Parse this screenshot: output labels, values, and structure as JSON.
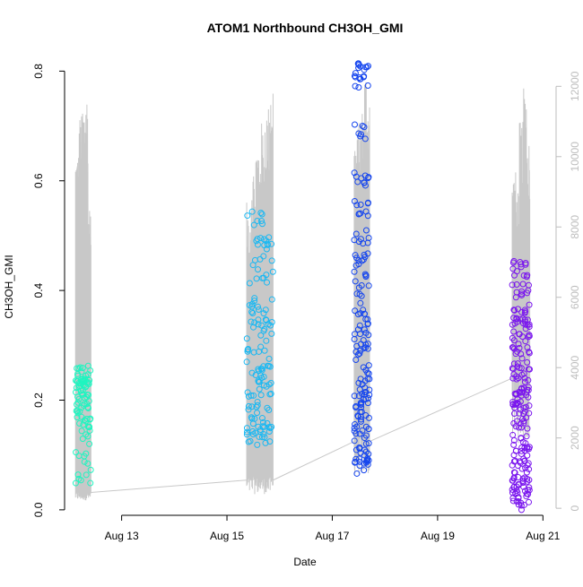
{
  "chart_data": {
    "type": "scatter",
    "title": "ATOM1 Northbound CH3OH_GMI",
    "xlabel": "Date",
    "ylabel": "CH3OH_GMI",
    "xlim": [
      "2016-08-11T22:00",
      "2016-08-21T06:00"
    ],
    "ylim": [
      -0.01,
      0.83
    ],
    "y_ticks": [
      0.0,
      0.2,
      0.4,
      0.6,
      0.8
    ],
    "x_ticks": [
      {
        "date": "2016-08-13T00:00",
        "label": "Aug 13"
      },
      {
        "date": "2016-08-15T00:00",
        "label": "Aug 15"
      },
      {
        "date": "2016-08-17T00:00",
        "label": "Aug 17"
      },
      {
        "date": "2016-08-19T00:00",
        "label": "Aug 19"
      },
      {
        "date": "2016-08-21T00:00",
        "label": "Aug 21"
      }
    ],
    "y2lim": [
      -200,
      12900
    ],
    "y2_ticks": [
      0,
      2000,
      4000,
      6000,
      8000,
      10000,
      12000
    ],
    "grid": false,
    "legend": "none",
    "altitude_line_color": "#c8c8c8",
    "flights": [
      {
        "start": "2016-08-12T03:00",
        "end": "2016-08-12T10:00",
        "color": "#1ff5c0",
        "n": 90,
        "ch3oh_levels": [
          0.18,
          0.19,
          0.2,
          0.21,
          0.22,
          0.23,
          0.24,
          0.245,
          0.25,
          0.16,
          0.17,
          0.15,
          0.13,
          0.09,
          0.06
        ],
        "alt_peaks": [
          10200,
          11200,
          11600,
          11900,
          8600
        ],
        "alt_floor": 450
      },
      {
        "start": "2016-08-15T09:00",
        "end": "2016-08-15T21:00",
        "color": "#1ab8f2",
        "n": 140,
        "ch3oh_levels": [
          0.13,
          0.15,
          0.18,
          0.2,
          0.22,
          0.24,
          0.25,
          0.27,
          0.3,
          0.33,
          0.36,
          0.39,
          0.42,
          0.45,
          0.49,
          0.53
        ],
        "alt_peaks": [
          8700,
          9800,
          10500,
          11000,
          11500,
          12400
        ],
        "alt_floor": 800
      },
      {
        "start": "2016-08-17T10:00",
        "end": "2016-08-17T17:00",
        "color": "#1545ee",
        "n": 190,
        "ch3oh_levels": [
          0.08,
          0.1,
          0.12,
          0.15,
          0.18,
          0.2,
          0.22,
          0.25,
          0.28,
          0.3,
          0.33,
          0.36,
          0.38,
          0.42,
          0.46,
          0.5,
          0.55,
          0.6,
          0.69,
          0.78,
          0.8
        ],
        "alt_peaks": [
          10600,
          11000,
          11400,
          12500,
          11800
        ],
        "alt_floor": 1900
      },
      {
        "start": "2016-08-20T10:00",
        "end": "2016-08-20T18:00",
        "color": "#7a16ee",
        "n": 220,
        "ch3oh_levels": [
          0.01,
          0.03,
          0.05,
          0.08,
          0.1,
          0.12,
          0.15,
          0.18,
          0.2,
          0.22,
          0.25,
          0.28,
          0.3,
          0.33,
          0.36,
          0.4,
          0.44
        ],
        "alt_peaks": [
          9600,
          9200,
          11000,
          12100,
          10600
        ],
        "alt_floor": 3700
      }
    ]
  }
}
